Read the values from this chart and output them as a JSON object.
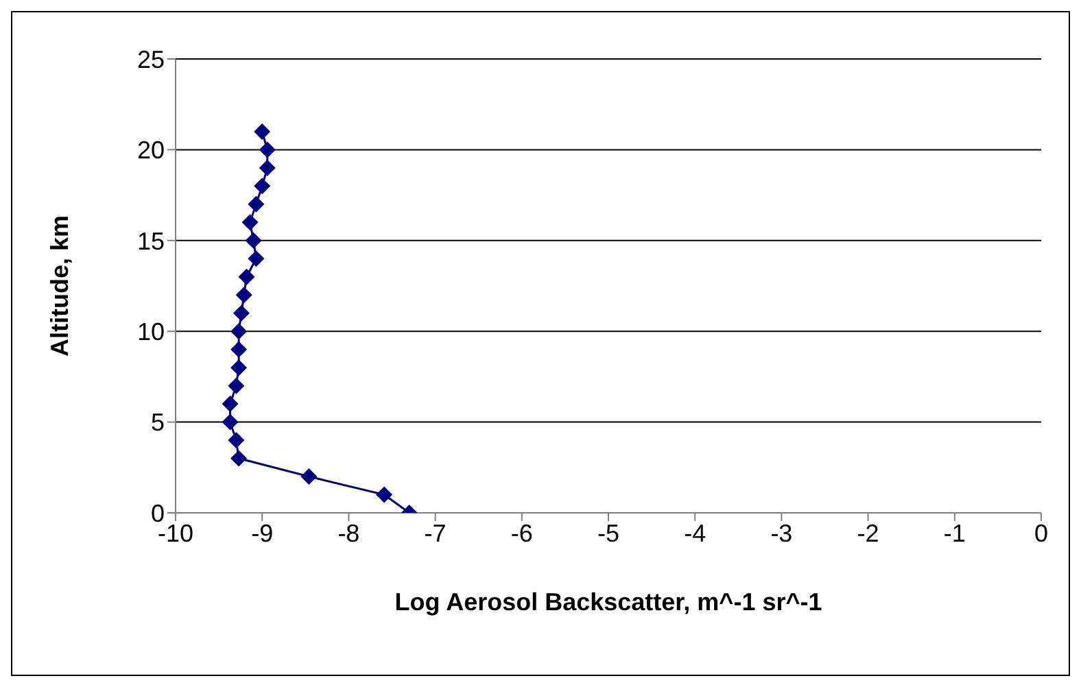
{
  "chart_data": {
    "type": "line",
    "xlabel": "Log Aerosol Backscatter, m^-1 sr^-1",
    "ylabel": "Altitude, km",
    "series": [
      {
        "color": "#000080",
        "x": [
          -7.3,
          -7.59,
          -8.46,
          -9.27,
          -9.3,
          -9.37,
          -9.37,
          -9.3,
          -9.27,
          -9.27,
          -9.27,
          -9.24,
          -9.21,
          -9.18,
          -9.07,
          -9.1,
          -9.14,
          -9.07,
          -9.0,
          -8.94,
          -8.94,
          -9.0
        ],
        "values": [
          0,
          1,
          2,
          3,
          4,
          5,
          6,
          7,
          8,
          9,
          10,
          11,
          12,
          13,
          14,
          15,
          16,
          17,
          18,
          19,
          20,
          21
        ]
      }
    ],
    "xlim": [
      -10,
      0
    ],
    "xticks": [
      -10,
      -9,
      -8,
      -7,
      -6,
      -5,
      -4,
      -3,
      -2,
      -1,
      0
    ],
    "ylim": [
      0,
      25
    ],
    "yticks": [
      0,
      5,
      10,
      15,
      20,
      25
    ],
    "grid": "y",
    "marker": "diamond",
    "line_style": "solid"
  }
}
